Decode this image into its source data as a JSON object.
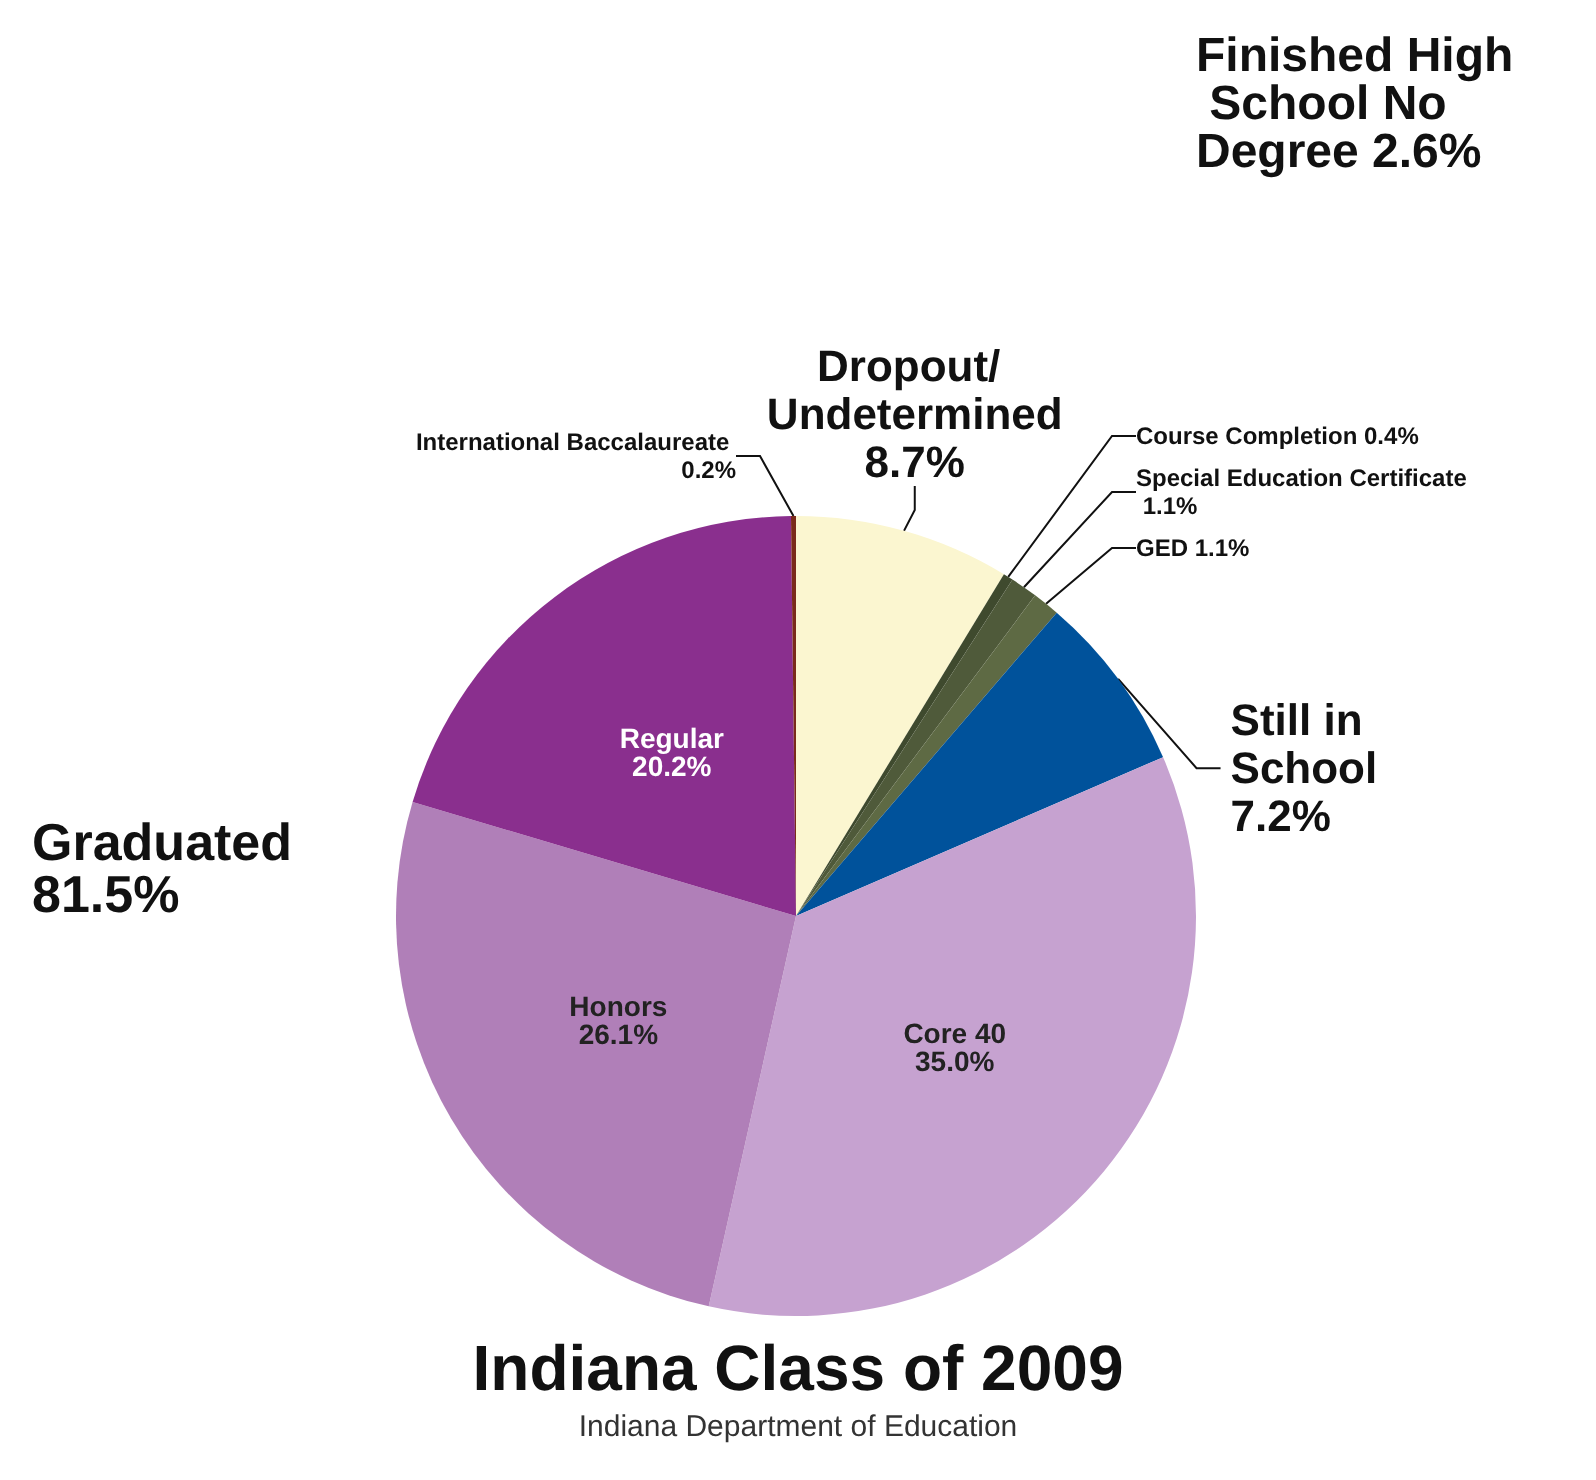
{
  "chart_data": {
    "type": "pie",
    "title": "Indiana Class of 2009",
    "categories": [
      "Dropout/ Undetermined",
      "Course Completion",
      "Special Education Certificate",
      "GED",
      "Still in School",
      "Core 40",
      "Honors",
      "Regular",
      "International Baccalaureate"
    ],
    "values": [
      8.7,
      0.4,
      1.1,
      1.1,
      7.2,
      35.0,
      26.1,
      20.2,
      0.2
    ],
    "value_labels": [
      "8.7%",
      "0.4%",
      "1.1%",
      "1.1%",
      "7.2%",
      "35.0%",
      "26.1%",
      "20.2%",
      "0.2%"
    ],
    "colors": [
      "#fbf6d0",
      "#3f4a2e",
      "#4f5a3a",
      "#5e6a44",
      "#00529b",
      "#c6a2d0",
      "#b07fb8",
      "#8a2f8e",
      "#7a2a1a"
    ],
    "annotations": [
      "Graduated 81.5%",
      "Finished High School No Degree 2.6%",
      "Indiana Department of Education"
    ],
    "legend": false
  }
}
